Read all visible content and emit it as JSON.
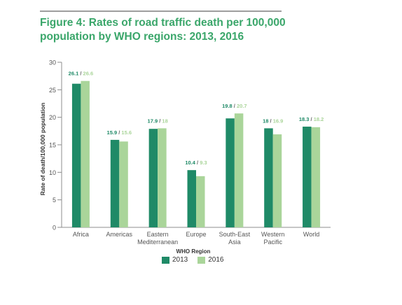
{
  "figure": {
    "title_line1": "Figure 4: Rates of road traffic death per 100,000",
    "title_line2": "population by WHO regions: 2013, 2016"
  },
  "colors": {
    "title": "#3aa66a",
    "series_2013": "#1f8a67",
    "series_2016": "#aad59a",
    "axis": "#8c8c8c"
  },
  "chart_data": {
    "type": "bar",
    "title": "Figure 4: Rates of road traffic death per 100,000 population by WHO regions: 2013, 2016",
    "xlabel": "WHO Region",
    "ylabel": "Rate of death/100,000 population",
    "ylim": [
      0,
      30
    ],
    "yticks": [
      0,
      5,
      10,
      15,
      20,
      25,
      30
    ],
    "grid": false,
    "legend_position": "bottom-center",
    "categories": [
      [
        "Africa"
      ],
      [
        "Americas"
      ],
      [
        "Eastern",
        "Mediterranean"
      ],
      [
        "Europe"
      ],
      [
        "South-East",
        "Asia"
      ],
      [
        "Western",
        "Pacific"
      ],
      [
        "World"
      ]
    ],
    "series": [
      {
        "name": "2013",
        "color": "#1f8a67",
        "values": [
          26.1,
          15.9,
          17.9,
          10.4,
          19.8,
          18,
          18.3
        ]
      },
      {
        "name": "2016",
        "color": "#aad59a",
        "values": [
          26.6,
          15.6,
          18,
          9.3,
          20.7,
          16.9,
          18.2
        ]
      }
    ]
  }
}
